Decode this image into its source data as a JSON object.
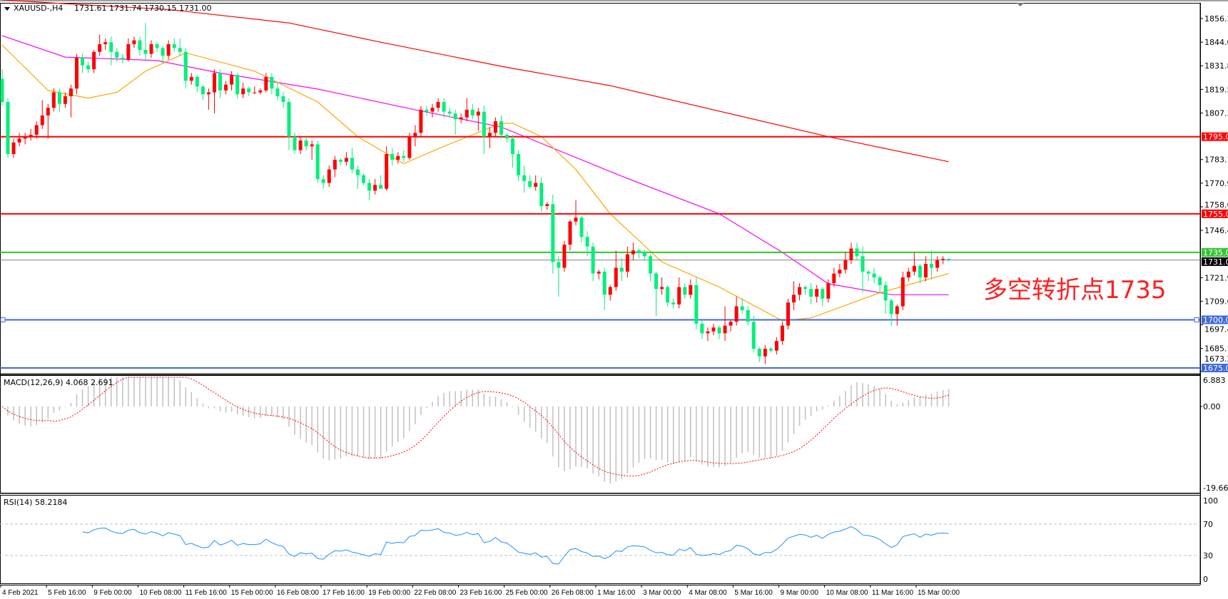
{
  "header": {
    "symbol_timeframe": "XAUUSD-,H4",
    "ohlc": "1731.61 1731.74 1730.15 1731.00"
  },
  "annotation": "多空转折点1735",
  "colors": {
    "bull_candle": "#ff0000",
    "bear_candle": "#00f07a",
    "ma_long": "#ff0000",
    "ma_mid": "#ff00ff",
    "ma_short": "#ffa500",
    "macd_histogram": "#c0c0c0",
    "macd_signal": "#ff0000",
    "rsi_line": "#1e90ff"
  },
  "chart_data": [
    {
      "type": "candlestick",
      "title": "XAUUSD-,H4",
      "ylim": [
        1673.25,
        1862
      ],
      "price_axis_ticks": [
        "1856.30",
        "1844.05",
        "1831.80",
        "1819.55",
        "1807.30",
        "1783.15",
        "1770.90",
        "1758.65",
        "1746.40",
        "1721.90",
        "1709.65",
        "1697.40",
        "1685.15",
        "1673.25"
      ],
      "time_axis_ticks": [
        "4 Feb 2021",
        "5 Feb 16:00",
        "9 Feb 00:00",
        "10 Feb 08:00",
        "11 Feb 16:00",
        "15 Feb 00:00",
        "16 Feb 08:00",
        "17 Feb 16:00",
        "19 Feb 00:00",
        "22 Feb 08:00",
        "23 Feb 16:00",
        "25 Feb 00:00",
        "26 Feb 08:00",
        "1 Mar 16:00",
        "3 Mar 00:00",
        "4 Mar 08:00",
        "5 Mar 16:00",
        "9 Mar 00:00",
        "10 Mar 08:00",
        "11 Mar 16:00",
        "15 Mar 00:00"
      ],
      "horizontal_lines": [
        {
          "price": 1795.0,
          "label": "1795.00",
          "color": "#ff0000"
        },
        {
          "price": 1755.0,
          "label": "1755.00",
          "color": "#ff0000"
        },
        {
          "price": 1735.0,
          "label": "1735.00",
          "color": "#33c433"
        },
        {
          "price": 1731.0,
          "label": "1731.00",
          "color": "#808080",
          "label_bg": "#000000"
        },
        {
          "price": 1700.0,
          "label": "1700.00",
          "color": "#3f6ad8"
        },
        {
          "price": 1675.0,
          "label": "1675.00",
          "color": "#3f6ad8"
        }
      ],
      "candles_ohlc": [
        [
          1825,
          1830,
          1811,
          1813
        ],
        [
          1813,
          1815,
          1784,
          1786
        ],
        [
          1786,
          1794,
          1784,
          1792
        ],
        [
          1792,
          1797,
          1790,
          1794
        ],
        [
          1794,
          1797,
          1791,
          1795
        ],
        [
          1795,
          1799,
          1793,
          1796
        ],
        [
          1796,
          1803,
          1794,
          1801
        ],
        [
          1801,
          1814,
          1799,
          1806
        ],
        [
          1806,
          1812,
          1794,
          1810
        ],
        [
          1810,
          1820,
          1808,
          1818
        ],
        [
          1818,
          1820,
          1808,
          1812
        ],
        [
          1812,
          1818,
          1810,
          1816
        ],
        [
          1816,
          1822,
          1805,
          1820
        ],
        [
          1820,
          1838,
          1817,
          1836
        ],
        [
          1836,
          1838,
          1828,
          1832
        ],
        [
          1832,
          1834,
          1828,
          1830
        ],
        [
          1830,
          1840,
          1828,
          1839
        ],
        [
          1839,
          1848,
          1837,
          1843
        ],
        [
          1843,
          1846,
          1840,
          1844
        ],
        [
          1844,
          1847,
          1832,
          1839
        ],
        [
          1839,
          1841,
          1834,
          1836
        ],
        [
          1836,
          1838,
          1833,
          1835
        ],
        [
          1835,
          1846,
          1834,
          1843
        ],
        [
          1843,
          1847,
          1841,
          1845
        ],
        [
          1845,
          1847,
          1837,
          1840
        ],
        [
          1840,
          1854,
          1835,
          1838
        ],
        [
          1838,
          1845,
          1836,
          1843
        ],
        [
          1843,
          1844,
          1839,
          1841
        ],
        [
          1841,
          1842,
          1833,
          1837
        ],
        [
          1837,
          1845,
          1835,
          1843
        ],
        [
          1843,
          1846,
          1839,
          1841
        ],
        [
          1841,
          1846,
          1837,
          1839
        ],
        [
          1839,
          1841,
          1820,
          1824
        ],
        [
          1824,
          1828,
          1822,
          1826
        ],
        [
          1826,
          1827,
          1818,
          1821
        ],
        [
          1821,
          1822,
          1814,
          1817
        ],
        [
          1817,
          1820,
          1809,
          1818
        ],
        [
          1818,
          1830,
          1807,
          1828
        ],
        [
          1828,
          1830,
          1815,
          1819
        ],
        [
          1819,
          1824,
          1817,
          1822
        ],
        [
          1822,
          1829,
          1819,
          1827
        ],
        [
          1827,
          1828,
          1815,
          1817
        ],
        [
          1817,
          1823,
          1815,
          1820
        ],
        [
          1820,
          1821,
          1816,
          1818
        ],
        [
          1818,
          1821,
          1817,
          1818
        ],
        [
          1818,
          1820,
          1817,
          1819
        ],
        [
          1819,
          1828,
          1818,
          1826
        ],
        [
          1826,
          1828,
          1817,
          1820
        ],
        [
          1820,
          1823,
          1814,
          1816
        ],
        [
          1816,
          1818,
          1810,
          1813
        ],
        [
          1813,
          1815,
          1788,
          1795
        ],
        [
          1795,
          1797,
          1786,
          1788
        ],
        [
          1788,
          1795,
          1786,
          1793
        ],
        [
          1793,
          1795,
          1788,
          1790
        ],
        [
          1790,
          1793,
          1783,
          1791
        ],
        [
          1791,
          1793,
          1771,
          1773
        ],
        [
          1773,
          1775,
          1768,
          1771
        ],
        [
          1771,
          1780,
          1769,
          1778
        ],
        [
          1778,
          1785,
          1774,
          1783
        ],
        [
          1783,
          1784,
          1780,
          1782
        ],
        [
          1782,
          1787,
          1780,
          1784
        ],
        [
          1784,
          1789,
          1776,
          1778
        ],
        [
          1778,
          1780,
          1768,
          1775
        ],
        [
          1775,
          1776,
          1770,
          1771
        ],
        [
          1771,
          1773,
          1762,
          1767
        ],
        [
          1767,
          1773,
          1765,
          1770
        ],
        [
          1770,
          1775,
          1768,
          1768
        ],
        [
          1768,
          1790,
          1767,
          1786
        ],
        [
          1786,
          1789,
          1780,
          1783
        ],
        [
          1783,
          1787,
          1781,
          1785
        ],
        [
          1785,
          1788,
          1782,
          1784
        ],
        [
          1784,
          1797,
          1783,
          1795
        ],
        [
          1795,
          1801,
          1790,
          1797
        ],
        [
          1797,
          1811,
          1795,
          1809
        ],
        [
          1809,
          1811,
          1806,
          1808
        ],
        [
          1808,
          1812,
          1805,
          1810
        ],
        [
          1810,
          1815,
          1808,
          1813
        ],
        [
          1813,
          1815,
          1805,
          1808
        ],
        [
          1808,
          1810,
          1805,
          1807
        ],
        [
          1807,
          1809,
          1796,
          1804
        ],
        [
          1804,
          1807,
          1802,
          1805
        ],
        [
          1805,
          1815,
          1803,
          1809
        ],
        [
          1809,
          1812,
          1804,
          1806
        ],
        [
          1806,
          1810,
          1798,
          1808
        ],
        [
          1808,
          1811,
          1786,
          1795
        ],
        [
          1795,
          1800,
          1789,
          1797
        ],
        [
          1797,
          1805,
          1795,
          1803
        ],
        [
          1803,
          1806,
          1794,
          1796
        ],
        [
          1796,
          1797,
          1792,
          1794
        ],
        [
          1794,
          1796,
          1779,
          1786
        ],
        [
          1786,
          1788,
          1772,
          1775
        ],
        [
          1775,
          1780,
          1766,
          1772
        ],
        [
          1772,
          1775,
          1768,
          1769
        ],
        [
          1769,
          1775,
          1767,
          1771
        ],
        [
          1771,
          1774,
          1756,
          1759
        ],
        [
          1759,
          1761,
          1757,
          1760
        ],
        [
          1760,
          1765,
          1724,
          1730
        ],
        [
          1730,
          1733,
          1712,
          1727
        ],
        [
          1727,
          1741,
          1725,
          1739
        ],
        [
          1739,
          1752,
          1736,
          1751
        ],
        [
          1751,
          1762,
          1749,
          1753
        ],
        [
          1753,
          1754,
          1740,
          1743
        ],
        [
          1743,
          1746,
          1733,
          1738
        ],
        [
          1738,
          1740,
          1720,
          1724
        ],
        [
          1724,
          1726,
          1721,
          1725
        ],
        [
          1725,
          1727,
          1705,
          1713
        ],
        [
          1713,
          1718,
          1710,
          1717
        ],
        [
          1717,
          1736,
          1715,
          1727
        ],
        [
          1727,
          1732,
          1720,
          1725
        ],
        [
          1725,
          1738,
          1722,
          1734
        ],
        [
          1734,
          1740,
          1731,
          1736
        ],
        [
          1736,
          1737,
          1732,
          1735
        ],
        [
          1735,
          1736,
          1731,
          1733
        ],
        [
          1733,
          1734,
          1720,
          1724
        ],
        [
          1724,
          1725,
          1702,
          1716
        ],
        [
          1716,
          1722,
          1713,
          1717
        ],
        [
          1717,
          1718,
          1707,
          1709
        ],
        [
          1709,
          1711,
          1706,
          1708
        ],
        [
          1708,
          1722,
          1706,
          1717
        ],
        [
          1717,
          1719,
          1711,
          1713
        ],
        [
          1713,
          1721,
          1711,
          1718
        ],
        [
          1718,
          1722,
          1695,
          1698
        ],
        [
          1698,
          1700,
          1690,
          1693
        ],
        [
          1693,
          1696,
          1689,
          1694
        ],
        [
          1694,
          1698,
          1692,
          1696
        ],
        [
          1696,
          1697,
          1690,
          1693
        ],
        [
          1693,
          1707,
          1689,
          1697
        ],
        [
          1697,
          1700,
          1694,
          1699
        ],
        [
          1699,
          1712,
          1697,
          1707
        ],
        [
          1707,
          1711,
          1703,
          1705
        ],
        [
          1705,
          1707,
          1697,
          1699
        ],
        [
          1699,
          1702,
          1683,
          1685
        ],
        [
          1685,
          1686,
          1678,
          1681
        ],
        [
          1681,
          1687,
          1677,
          1685
        ],
        [
          1685,
          1686,
          1683,
          1684
        ],
        [
          1684,
          1691,
          1682,
          1689
        ],
        [
          1689,
          1699,
          1687,
          1697
        ],
        [
          1697,
          1711,
          1695,
          1709
        ],
        [
          1709,
          1720,
          1705,
          1713
        ],
        [
          1713,
          1719,
          1710,
          1717
        ],
        [
          1717,
          1718,
          1713,
          1716
        ],
        [
          1716,
          1719,
          1708,
          1712
        ],
        [
          1712,
          1718,
          1709,
          1716
        ],
        [
          1716,
          1717,
          1707,
          1711
        ],
        [
          1711,
          1721,
          1709,
          1719
        ],
        [
          1719,
          1727,
          1717,
          1724
        ],
        [
          1724,
          1729,
          1722,
          1726
        ],
        [
          1726,
          1735,
          1724,
          1731
        ],
        [
          1731,
          1740,
          1729,
          1737
        ],
        [
          1737,
          1740,
          1731,
          1733
        ],
        [
          1733,
          1738,
          1714,
          1725
        ],
        [
          1725,
          1726,
          1720,
          1724
        ],
        [
          1724,
          1727,
          1719,
          1722
        ],
        [
          1722,
          1723,
          1714,
          1718
        ],
        [
          1718,
          1720,
          1703,
          1710
        ],
        [
          1710,
          1711,
          1697,
          1703
        ],
        [
          1703,
          1708,
          1697,
          1707
        ],
        [
          1707,
          1725,
          1705,
          1722
        ],
        [
          1722,
          1727,
          1720,
          1725
        ],
        [
          1725,
          1735,
          1723,
          1728
        ],
        [
          1728,
          1729,
          1719,
          1722
        ],
        [
          1722,
          1733,
          1720,
          1729
        ],
        [
          1729,
          1736,
          1721,
          1727
        ],
        [
          1727,
          1733,
          1725,
          1731
        ],
        [
          1731,
          1733,
          1729,
          1731.6
        ],
        [
          1731.61,
          1731.74,
          1730.15,
          1731.0
        ]
      ],
      "moving_averages": [
        {
          "role": "long",
          "points_bar_price": [
            [
              0,
              1866
            ],
            [
              11,
              1864
            ],
            [
              29,
              1861
            ],
            [
              50,
              1854
            ],
            [
              66,
              1844
            ],
            [
              87,
              1831.5
            ],
            [
              106,
              1821.5
            ],
            [
              144,
              1795
            ],
            [
              165,
              1782
            ]
          ]
        },
        {
          "role": "mid",
          "points_bar_price": [
            [
              0,
              1847.4
            ],
            [
              11,
              1836.3
            ],
            [
              27,
              1834.5
            ],
            [
              38,
              1828
            ],
            [
              55,
              1819.7
            ],
            [
              72,
              1809
            ],
            [
              87,
              1800
            ],
            [
              108,
              1774.5
            ],
            [
              125,
              1755
            ],
            [
              136,
              1735
            ],
            [
              144,
              1718.7
            ],
            [
              155,
              1713
            ],
            [
              165,
              1713
            ]
          ]
        },
        {
          "role": "short",
          "points_bar_price": [
            [
              0,
              1842.6
            ],
            [
              8,
              1819
            ],
            [
              15,
              1815
            ],
            [
              20,
              1818
            ],
            [
              25,
              1829
            ],
            [
              32,
              1838.5
            ],
            [
              44,
              1829
            ],
            [
              55,
              1813
            ],
            [
              62,
              1795
            ],
            [
              70,
              1781
            ],
            [
              77,
              1790
            ],
            [
              87,
              1802
            ],
            [
              89,
              1802
            ],
            [
              94,
              1795
            ],
            [
              100,
              1778
            ],
            [
              106,
              1755
            ],
            [
              115,
              1730
            ],
            [
              125,
              1717
            ],
            [
              136,
              1699.5
            ],
            [
              141,
              1701
            ],
            [
              153,
              1714
            ],
            [
              165,
              1724
            ]
          ]
        }
      ]
    },
    {
      "type": "bar+line",
      "title": "MACD(12,26,9) 4.068 2.691",
      "params": {
        "fast": 12,
        "slow": 26,
        "signal": 9
      },
      "ylim": [
        -19.669,
        6.883
      ],
      "tick_labels": [
        "6.883",
        "0.00",
        "-19.669"
      ]
    },
    {
      "type": "line",
      "title": "RSI(14) 58.2184",
      "period": 14,
      "ylim": [
        0,
        100
      ],
      "levels": [
        70,
        30
      ],
      "tick_labels": [
        "100",
        "70",
        "30",
        "0"
      ]
    }
  ]
}
